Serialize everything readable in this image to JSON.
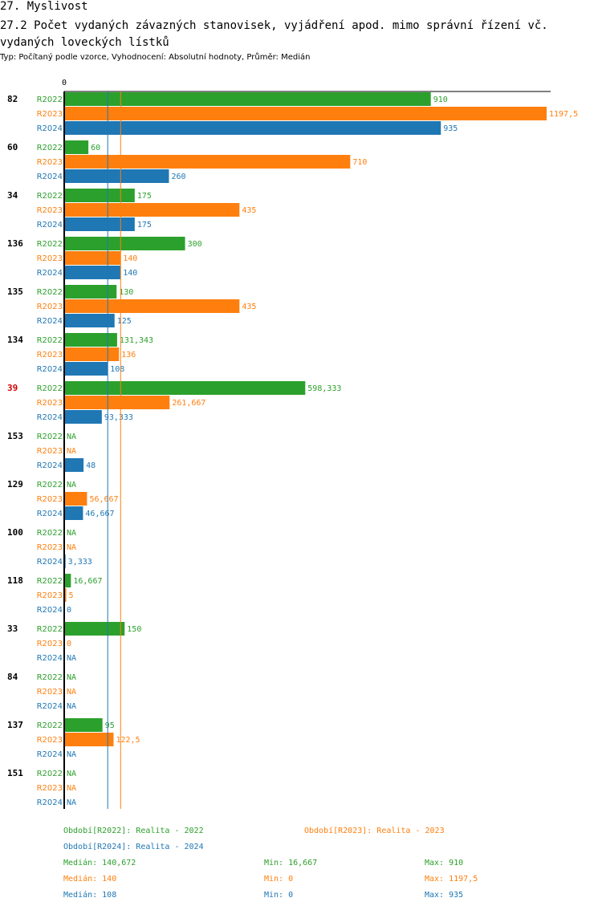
{
  "header": {
    "title": "27. Myslivost",
    "subtitle": "27.2 Počet vydaných závazných stanovisek, vyjádření apod. mimo správní řízení vč. vydaných loveckých lístků",
    "info": "Typ: Počítaný podle vzorce, Vyhodnocení: Absolutní hodnoty, Průměr: Medián"
  },
  "colors": {
    "R2022": "#2ca02c",
    "R2023": "#ff7f0e",
    "R2024": "#1f77b4",
    "highlight": "#cc0000"
  },
  "chart_data": {
    "type": "bar",
    "orientation": "horizontal",
    "axis_zero_label": "0",
    "xlim": [
      0,
      1197.5
    ],
    "series_names": [
      "R2022",
      "R2023",
      "R2024"
    ],
    "groups": [
      {
        "label": "82",
        "highlight": false,
        "values": [
          910,
          1197.5,
          935
        ],
        "labels": [
          "910",
          "1197,5",
          "935"
        ]
      },
      {
        "label": "60",
        "highlight": false,
        "values": [
          60,
          710,
          260
        ],
        "labels": [
          "60",
          "710",
          "260"
        ]
      },
      {
        "label": "34",
        "highlight": false,
        "values": [
          175,
          435,
          175
        ],
        "labels": [
          "175",
          "435",
          "175"
        ]
      },
      {
        "label": "136",
        "highlight": false,
        "values": [
          300,
          140,
          140
        ],
        "labels": [
          "300",
          "140",
          "140"
        ]
      },
      {
        "label": "135",
        "highlight": false,
        "values": [
          130,
          435,
          125
        ],
        "labels": [
          "130",
          "435",
          "125"
        ]
      },
      {
        "label": "134",
        "highlight": false,
        "values": [
          131.343,
          136,
          108
        ],
        "labels": [
          "131,343",
          "136",
          "108"
        ]
      },
      {
        "label": "39",
        "highlight": true,
        "values": [
          598.333,
          261.667,
          93.333
        ],
        "labels": [
          "598,333",
          "261,667",
          "93,333"
        ]
      },
      {
        "label": "153",
        "highlight": false,
        "values": [
          null,
          null,
          48
        ],
        "labels": [
          "NA",
          "NA",
          "48"
        ]
      },
      {
        "label": "129",
        "highlight": false,
        "values": [
          null,
          56.667,
          46.667
        ],
        "labels": [
          "NA",
          "56,667",
          "46,667"
        ]
      },
      {
        "label": "100",
        "highlight": false,
        "values": [
          null,
          null,
          3.333
        ],
        "labels": [
          "NA",
          "NA",
          "3,333"
        ]
      },
      {
        "label": "118",
        "highlight": false,
        "values": [
          16.667,
          5,
          0
        ],
        "labels": [
          "16,667",
          "5",
          "0"
        ]
      },
      {
        "label": "33",
        "highlight": false,
        "values": [
          150,
          0,
          null
        ],
        "labels": [
          "150",
          "0",
          "NA"
        ]
      },
      {
        "label": "84",
        "highlight": false,
        "values": [
          null,
          null,
          null
        ],
        "labels": [
          "NA",
          "NA",
          "NA"
        ]
      },
      {
        "label": "137",
        "highlight": false,
        "values": [
          95,
          122.5,
          null
        ],
        "labels": [
          "95",
          "122,5",
          "NA"
        ]
      },
      {
        "label": "151",
        "highlight": false,
        "values": [
          null,
          null,
          null
        ],
        "labels": [
          "NA",
          "NA",
          "NA"
        ]
      }
    ],
    "median_lines": [
      {
        "series": "R2023",
        "value": 140
      },
      {
        "series": "R2024",
        "value": 108
      }
    ]
  },
  "legend": {
    "r2022": "Období[R2022]: Realita - 2022",
    "r2023": "Období[R2023]: Realita - 2023",
    "r2024": "Období[R2024]: Realita - 2024"
  },
  "stats": {
    "r2022": {
      "median": "Medián: 140,672",
      "min": "Min: 16,667",
      "max": "Max: 910"
    },
    "r2023": {
      "median": "Medián: 140",
      "min": "Min: 0",
      "max": "Max: 1197,5"
    },
    "r2024": {
      "median": "Medián: 108",
      "min": "Min: 0",
      "max": "Max: 935"
    }
  }
}
